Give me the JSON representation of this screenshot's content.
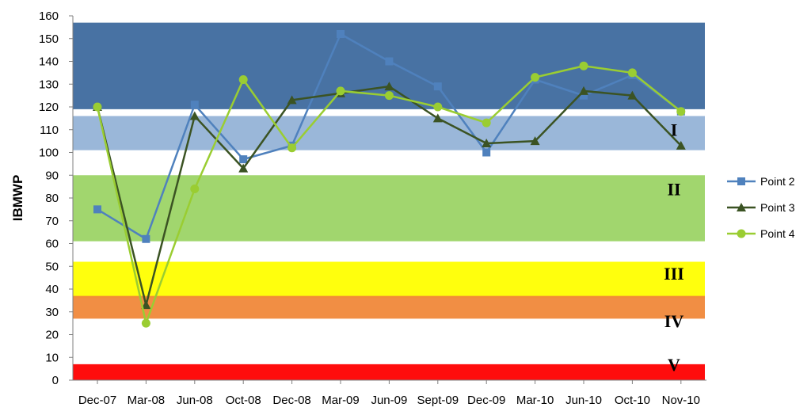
{
  "chart_data": {
    "type": "line",
    "title": "",
    "xlabel": "",
    "ylabel": "IBMWP",
    "ylim": [
      0,
      160
    ],
    "yticks": [
      0,
      10,
      20,
      30,
      40,
      50,
      60,
      70,
      80,
      90,
      100,
      110,
      120,
      130,
      140,
      150,
      160
    ],
    "categories": [
      "Dec-07",
      "Mar-08",
      "Jun-08",
      "Oct-08",
      "Dec-08",
      "Mar-09",
      "Jun-09",
      "Sept-09",
      "Dec-09",
      "Mar-10",
      "Jun-10",
      "Oct-10",
      "Nov-10"
    ],
    "series": [
      {
        "name": "Point 2",
        "color": "#4f81bd",
        "marker": "square",
        "values": [
          75,
          62,
          121,
          97,
          103,
          152,
          140,
          129,
          100,
          132,
          125,
          134,
          118
        ]
      },
      {
        "name": "Point 3",
        "color": "#3b5323",
        "marker": "triangle",
        "values": [
          120,
          33,
          116,
          93,
          123,
          126,
          129,
          115,
          104,
          105,
          127,
          125,
          103
        ]
      },
      {
        "name": "Point 4",
        "color": "#9acd32",
        "marker": "circle",
        "values": [
          120,
          25,
          84,
          132,
          102,
          127,
          125,
          120,
          113,
          133,
          138,
          135,
          118
        ]
      }
    ],
    "bands": [
      {
        "label": "",
        "from": 119,
        "to": 157,
        "color": "#3e6a9e"
      },
      {
        "label": "I",
        "from": 101,
        "to": 116,
        "color": "#95b3d7"
      },
      {
        "label": "II",
        "from": 61,
        "to": 90,
        "color": "#9cd466"
      },
      {
        "label": "III",
        "from": 36,
        "to": 52,
        "color": "#ffff00"
      },
      {
        "label": "IV",
        "from": 27,
        "to": 37,
        "color": "#f0883a"
      },
      {
        "label": "V",
        "from": 0,
        "to": 7,
        "color": "#ff0000"
      }
    ],
    "grid": false,
    "legend_position": "right"
  }
}
